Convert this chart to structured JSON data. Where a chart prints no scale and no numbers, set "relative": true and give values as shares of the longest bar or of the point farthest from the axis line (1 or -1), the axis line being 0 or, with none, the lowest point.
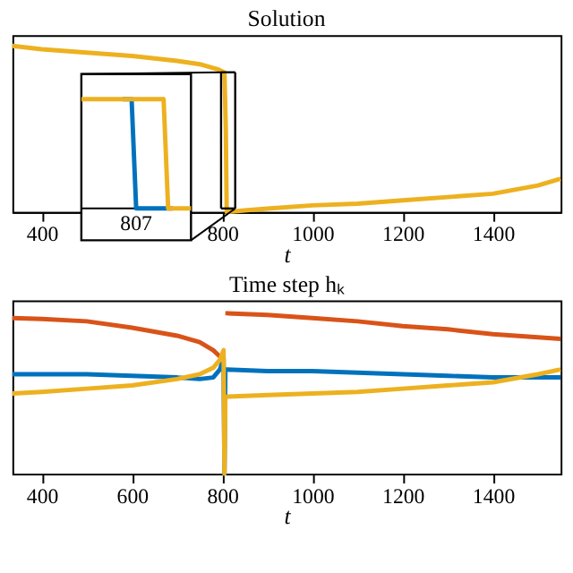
{
  "chart_data": [
    {
      "type": "line",
      "title": "Solution",
      "xlabel": "t",
      "relative": true,
      "xlim": [
        335,
        1550
      ],
      "xticks": [
        400,
        800,
        1000,
        1200,
        1400
      ],
      "x": [
        335,
        400,
        500,
        600,
        700,
        750,
        790,
        805,
        808,
        810,
        850,
        900,
        1000,
        1100,
        1200,
        1300,
        1400,
        1500,
        1550
      ],
      "series": [
        {
          "color": "#edb120",
          "values": [
            1.0,
            0.98,
            0.96,
            0.94,
            0.91,
            0.89,
            0.86,
            0.84,
            0.5,
            0.0,
            0.01,
            0.02,
            0.04,
            0.05,
            0.07,
            0.09,
            0.11,
            0.16,
            0.2
          ]
        }
      ]
    },
    {
      "type": "line",
      "title": "Time step hₖ",
      "xlabel": "t",
      "relative": true,
      "xlim": [
        335,
        1550
      ],
      "xticks": [
        400,
        600,
        800,
        1000,
        1200,
        1400
      ],
      "x": [
        335,
        400,
        500,
        600,
        700,
        750,
        780,
        795,
        803,
        805,
        807,
        810,
        900,
        1000,
        1100,
        1200,
        1300,
        1400,
        1500,
        1550
      ],
      "series": [
        {
          "color": "#0072bd",
          "values": [
            0.62,
            0.62,
            0.62,
            0.61,
            0.6,
            0.59,
            0.6,
            0.65,
            0.72,
            0,
            0.65,
            0.65,
            0.64,
            0.64,
            0.63,
            0.62,
            0.61,
            0.6,
            0.6,
            0.6
          ]
        },
        {
          "color": "#d95319",
          "values": [
            0.97,
            0.965,
            0.95,
            0.91,
            0.86,
            0.82,
            0.77,
            0.73,
            0.7,
            null,
            1.0,
            1.0,
            0.99,
            0.97,
            0.95,
            0.92,
            0.9,
            0.87,
            0.85,
            0.84
          ]
        },
        {
          "color": "#edb120",
          "values": [
            0.5,
            0.51,
            0.53,
            0.55,
            0.59,
            0.62,
            0.66,
            0.71,
            0.77,
            0,
            0.47,
            0.48,
            0.49,
            0.5,
            0.51,
            0.53,
            0.55,
            0.57,
            0.62,
            0.65
          ]
        }
      ]
    },
    {
      "type": "line",
      "relative": true,
      "annotations": [
        "807"
      ],
      "categories": [
        null,
        null,
        null,
        null,
        null,
        null,
        null,
        null,
        null,
        null,
        null,
        null,
        null,
        null,
        null,
        null,
        null,
        null,
        null,
        null,
        null,
        null,
        null,
        null,
        null
      ],
      "series": [
        {
          "color": "#0072bd",
          "values": [
            null,
            null,
            null,
            null,
            null,
            null,
            null,
            null,
            null,
            1,
            1,
            1,
            0,
            0,
            0,
            0,
            0,
            0,
            0,
            0,
            0,
            null,
            null,
            null,
            null
          ]
        },
        {
          "color": "#edb120",
          "values": [
            1,
            1,
            1,
            1,
            1,
            1,
            1,
            1,
            1,
            1,
            1,
            1,
            1,
            1,
            1,
            1,
            1,
            1,
            1,
            0,
            0,
            0,
            0,
            0,
            0
          ]
        }
      ]
    }
  ]
}
